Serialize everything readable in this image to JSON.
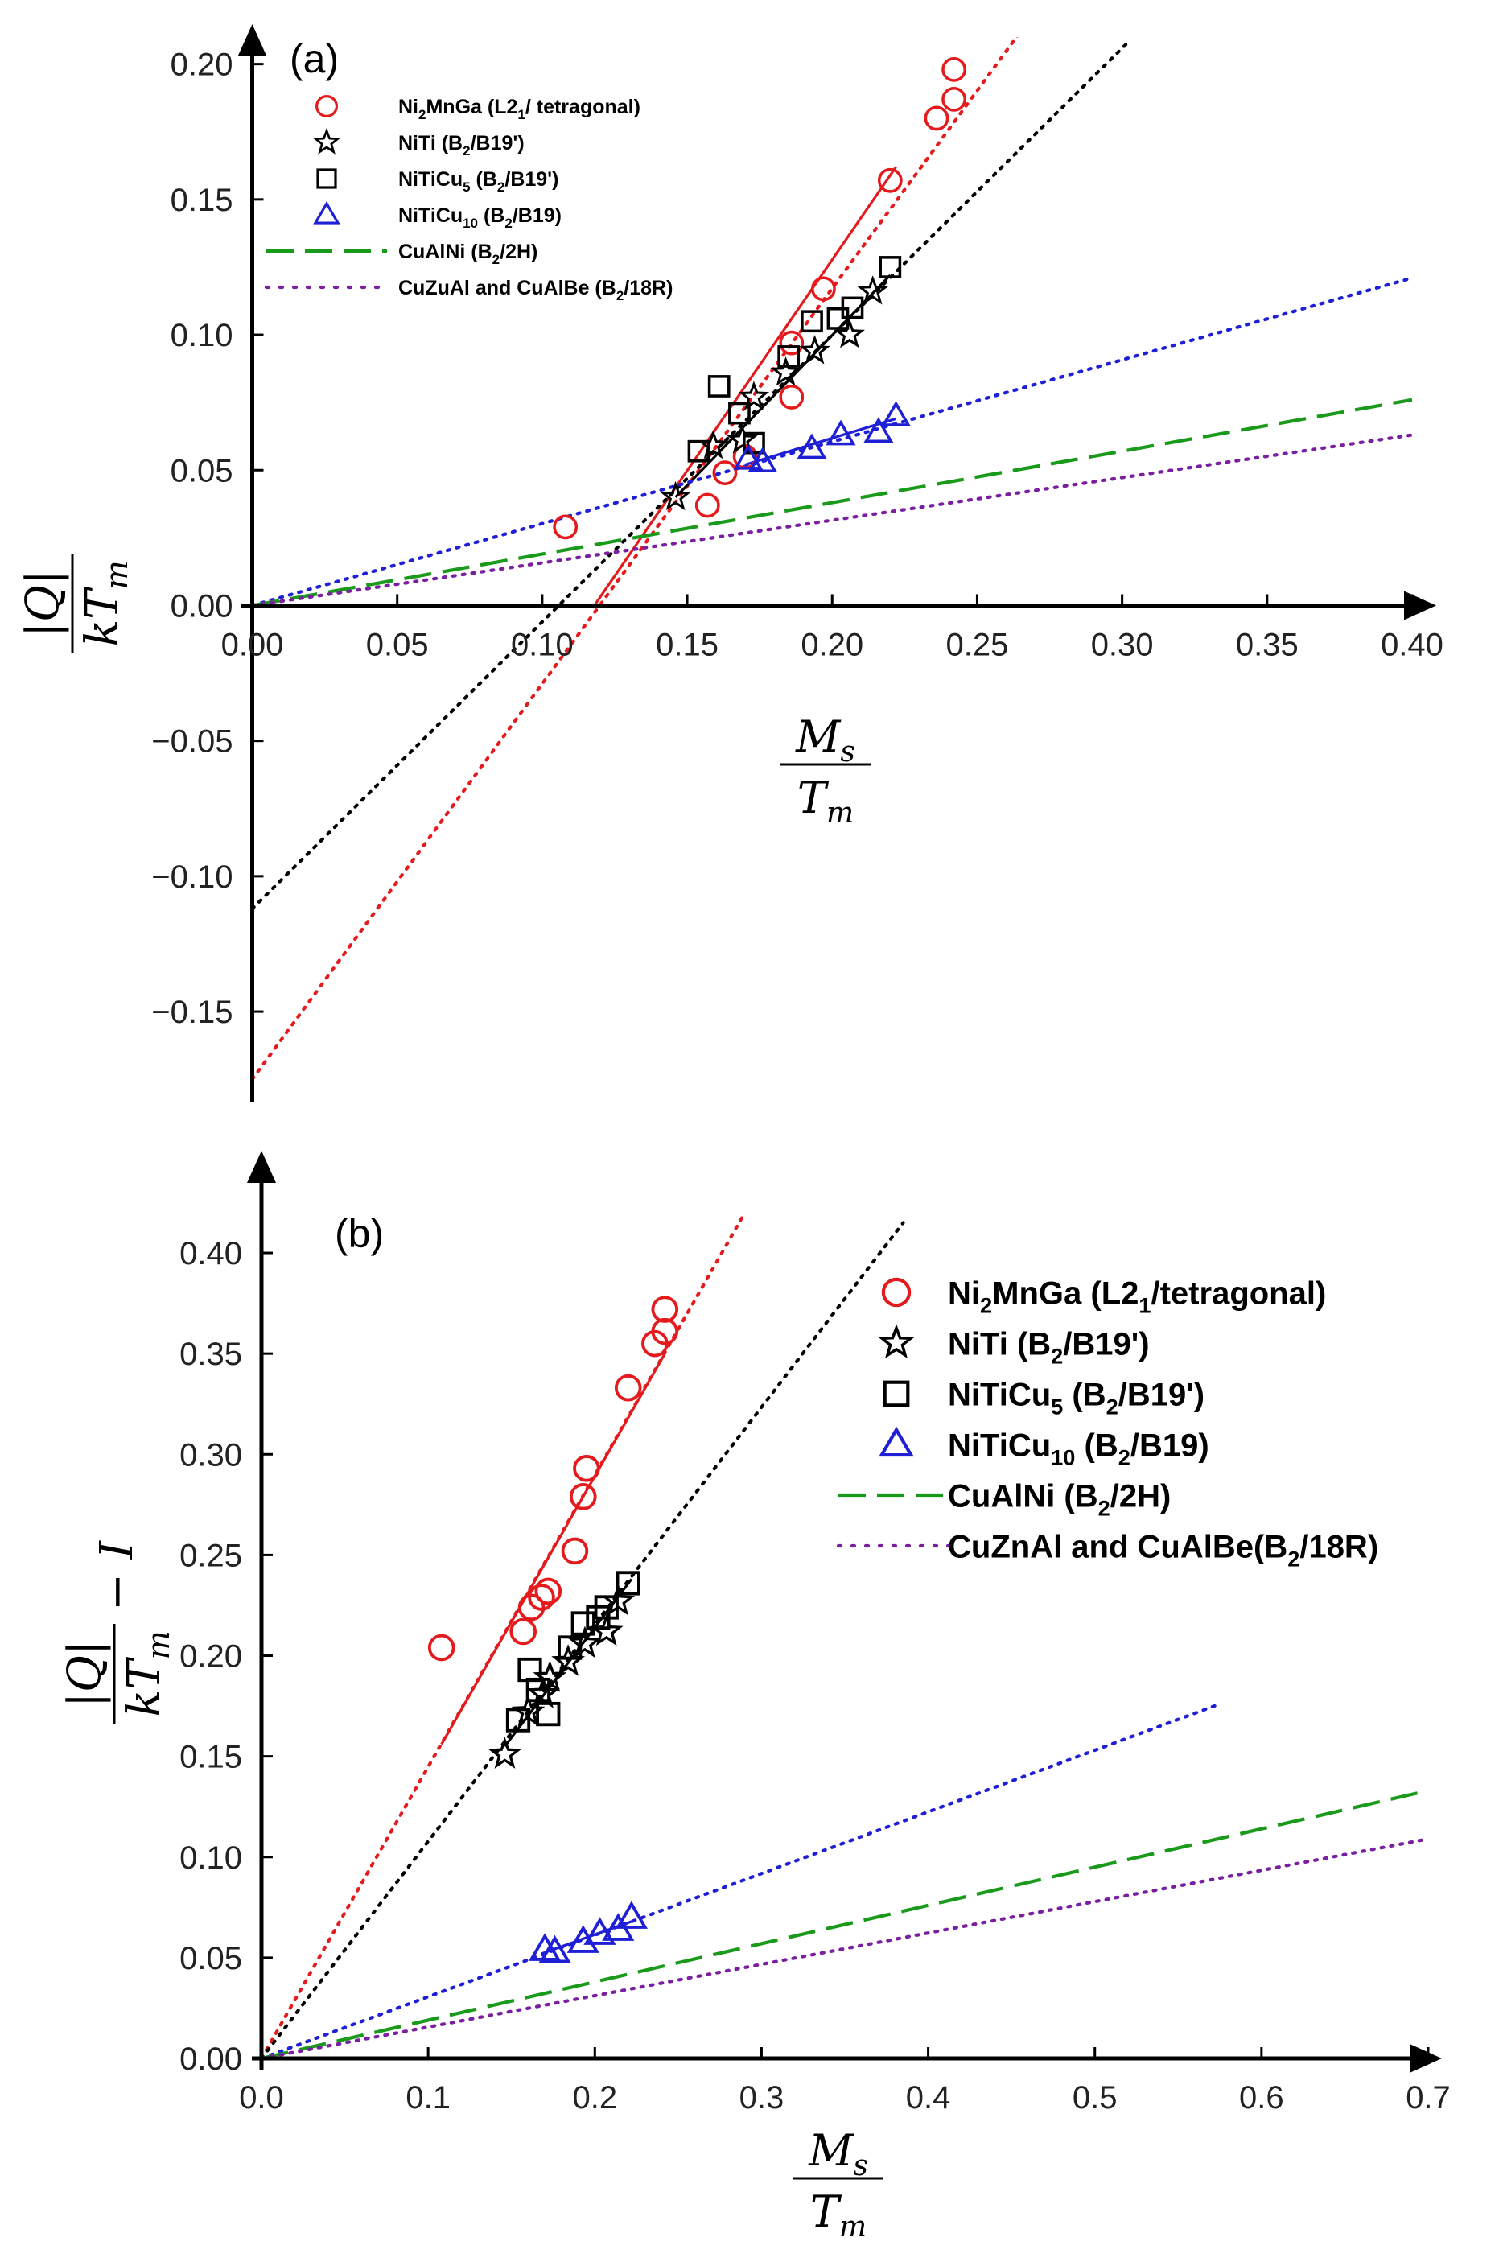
{
  "chart_data": [
    {
      "type": "scatter",
      "panel_label": "(a)",
      "xlabel_num": "M",
      "xlabel_num_sub": "s",
      "xlabel_den": "T",
      "xlabel_den_sub": "m",
      "ylabel_num": "|Q|",
      "ylabel_den": "kT",
      "ylabel_den_sub": "m",
      "ylabel_tail": "",
      "xlim": [
        0,
        0.4
      ],
      "ylim": [
        -0.18,
        0.21
      ],
      "xticks": [
        0.0,
        0.05,
        0.1,
        0.15,
        0.2,
        0.25,
        0.3,
        0.35,
        0.4
      ],
      "xtick_labels": [
        "0.00",
        "0.05",
        "0.10",
        "0.15",
        "0.20",
        "0.25",
        "0.30",
        "0.35",
        "0.40"
      ],
      "yticks": [
        -0.15,
        -0.1,
        -0.05,
        0.0,
        0.05,
        0.1,
        0.15,
        0.2
      ],
      "ytick_labels": [
        "−0.15",
        "−0.10",
        "−0.05",
        "0.00",
        "0.05",
        "0.10",
        "0.15",
        "0.20"
      ],
      "legend_position": "top-left",
      "legend_size": "small",
      "series": [
        {
          "name": "Ni2MnGa (L21/ tetragonal)",
          "marker": "circle",
          "color": "#e41a1c",
          "points": [
            [
              0.108,
              0.029
            ],
            [
              0.157,
              0.037
            ],
            [
              0.163,
              0.049
            ],
            [
              0.17,
              0.055
            ],
            [
              0.186,
              0.077
            ],
            [
              0.186,
              0.097
            ],
            [
              0.197,
              0.117
            ],
            [
              0.22,
              0.157
            ],
            [
              0.236,
              0.18
            ],
            [
              0.242,
              0.187
            ],
            [
              0.242,
              0.198
            ]
          ]
        },
        {
          "name": "NiTi (B2/B19')",
          "marker": "star",
          "color": "#000000",
          "points": [
            [
              0.146,
              0.04
            ],
            [
              0.159,
              0.059
            ],
            [
              0.169,
              0.061
            ],
            [
              0.173,
              0.077
            ],
            [
              0.184,
              0.086
            ],
            [
              0.194,
              0.094
            ],
            [
              0.206,
              0.1
            ],
            [
              0.214,
              0.116
            ]
          ]
        },
        {
          "name": "NiTiCu5 (B2/B19')",
          "marker": "square",
          "color": "#000000",
          "points": [
            [
              0.154,
              0.057
            ],
            [
              0.161,
              0.081
            ],
            [
              0.168,
              0.071
            ],
            [
              0.173,
              0.06
            ],
            [
              0.185,
              0.092
            ],
            [
              0.193,
              0.105
            ],
            [
              0.202,
              0.106
            ],
            [
              0.207,
              0.11
            ],
            [
              0.22,
              0.125
            ]
          ]
        },
        {
          "name": "NiTiCu10 (B2/B19)",
          "marker": "triangle",
          "color": "#1f1fd6",
          "points": [
            [
              0.171,
              0.054
            ],
            [
              0.176,
              0.053
            ],
            [
              0.193,
              0.058
            ],
            [
              0.203,
              0.063
            ],
            [
              0.216,
              0.064
            ],
            [
              0.222,
              0.07
            ]
          ]
        },
        {
          "name": "CuAlNi (B2/2H)",
          "marker": "none",
          "color": "#1a9a1a"
        },
        {
          "name": "CuZuAl and CuAlBe (B2/18R)",
          "marker": "none",
          "color": "#7a1fa0"
        }
      ],
      "lines": [
        {
          "color": "#e41a1c",
          "style": "dotted",
          "x": [
            0.0,
            0.267
          ],
          "y": [
            -0.175,
            0.215
          ]
        },
        {
          "color": "#e41a1c",
          "style": "solid",
          "x": [
            0.118,
            0.222
          ],
          "y": [
            0.0,
            0.162
          ]
        },
        {
          "color": "#000000",
          "style": "dotted",
          "x": [
            0.0,
            0.302
          ],
          "y": [
            -0.112,
            0.208
          ]
        },
        {
          "color": "#000000",
          "style": "solid",
          "x": [
            0.146,
            0.22
          ],
          "y": [
            0.04,
            0.122
          ]
        },
        {
          "color": "#1f1fd6",
          "style": "dotted",
          "x": [
            0.0,
            0.4
          ],
          "y": [
            0.0,
            0.121
          ]
        },
        {
          "color": "#1f1fd6",
          "style": "solid",
          "x": [
            0.17,
            0.222
          ],
          "y": [
            0.052,
            0.069
          ]
        },
        {
          "color": "#1a9a1a",
          "style": "dashed",
          "x": [
            0.0,
            0.4
          ],
          "y": [
            0.0,
            0.076
          ]
        },
        {
          "color": "#7a1fa0",
          "style": "dotted",
          "x": [
            0.0,
            0.4
          ],
          "y": [
            0.0,
            0.063
          ]
        }
      ]
    },
    {
      "type": "scatter",
      "panel_label": "(b)",
      "xlabel_num": "M",
      "xlabel_num_sub": "s",
      "xlabel_den": "T",
      "xlabel_den_sub": "m",
      "ylabel_num": "|Q|",
      "ylabel_den": "kT",
      "ylabel_den_sub": "m",
      "ylabel_tail": "− I",
      "xlim": [
        0,
        0.7
      ],
      "ylim": [
        0,
        0.42
      ],
      "xticks": [
        0.0,
        0.1,
        0.2,
        0.3,
        0.4,
        0.5,
        0.6,
        0.7
      ],
      "xtick_labels": [
        "0.0",
        "0.1",
        "0.2",
        "0.3",
        "0.4",
        "0.5",
        "0.6",
        "0.7"
      ],
      "yticks": [
        0.0,
        0.05,
        0.1,
        0.15,
        0.2,
        0.25,
        0.3,
        0.35,
        0.4
      ],
      "ytick_labels": [
        "0.00",
        "0.05",
        "0.10",
        "0.15",
        "0.20",
        "0.25",
        "0.30",
        "0.35",
        "0.40"
      ],
      "legend_position": "top-right",
      "legend_size": "large",
      "series": [
        {
          "name": "Ni2MnGa (L21/tetragonal)",
          "marker": "circle",
          "color": "#e41a1c",
          "points": [
            [
              0.108,
              0.204
            ],
            [
              0.157,
              0.212
            ],
            [
              0.162,
              0.224
            ],
            [
              0.168,
              0.229
            ],
            [
              0.172,
              0.232
            ],
            [
              0.188,
              0.252
            ],
            [
              0.193,
              0.279
            ],
            [
              0.195,
              0.293
            ],
            [
              0.22,
              0.333
            ],
            [
              0.236,
              0.355
            ],
            [
              0.242,
              0.361
            ],
            [
              0.242,
              0.372
            ]
          ]
        },
        {
          "name": "NiTi (B2/B19')",
          "marker": "star",
          "color": "#000000",
          "points": [
            [
              0.146,
              0.151
            ],
            [
              0.16,
              0.172
            ],
            [
              0.169,
              0.181
            ],
            [
              0.173,
              0.189
            ],
            [
              0.184,
              0.197
            ],
            [
              0.194,
              0.206
            ],
            [
              0.207,
              0.212
            ],
            [
              0.214,
              0.227
            ]
          ]
        },
        {
          "name": "NiTiCu5 (B2/B19')",
          "marker": "square",
          "color": "#000000",
          "points": [
            [
              0.154,
              0.168
            ],
            [
              0.161,
              0.193
            ],
            [
              0.166,
              0.183
            ],
            [
              0.172,
              0.171
            ],
            [
              0.185,
              0.204
            ],
            [
              0.193,
              0.216
            ],
            [
              0.202,
              0.219
            ],
            [
              0.207,
              0.224
            ],
            [
              0.22,
              0.236
            ]
          ]
        },
        {
          "name": "NiTiCu10 (B2/B19)",
          "marker": "triangle",
          "color": "#1f1fd6",
          "points": [
            [
              0.17,
              0.054
            ],
            [
              0.176,
              0.053
            ],
            [
              0.193,
              0.058
            ],
            [
              0.203,
              0.062
            ],
            [
              0.214,
              0.064
            ],
            [
              0.222,
              0.07
            ]
          ]
        },
        {
          "name": "CuAlNi (B2/2H)",
          "marker": "none",
          "color": "#1a9a1a"
        },
        {
          "name": "CuZnAl and CuAlBe(B2/18R)",
          "marker": "none",
          "color": "#7a1fa0"
        }
      ],
      "lines": [
        {
          "color": "#e41a1c",
          "style": "dotted",
          "x": [
            0.0,
            0.29
          ],
          "y": [
            0.0,
            0.42
          ]
        },
        {
          "color": "#e41a1c",
          "style": "solid",
          "x": [
            0.108,
            0.242
          ],
          "y": [
            0.156,
            0.35
          ]
        },
        {
          "color": "#000000",
          "style": "dotted",
          "x": [
            0.0,
            0.385
          ],
          "y": [
            0.0,
            0.415
          ]
        },
        {
          "color": "#000000",
          "style": "solid",
          "x": [
            0.146,
            0.222
          ],
          "y": [
            0.155,
            0.238
          ]
        },
        {
          "color": "#1f1fd6",
          "style": "dotted",
          "x": [
            0.0,
            0.575
          ],
          "y": [
            0.0,
            0.176
          ]
        },
        {
          "color": "#1f1fd6",
          "style": "solid",
          "x": [
            0.168,
            0.222
          ],
          "y": [
            0.052,
            0.068
          ]
        },
        {
          "color": "#1a9a1a",
          "style": "dashed",
          "x": [
            0.0,
            0.7
          ],
          "y": [
            0.0,
            0.133
          ]
        },
        {
          "color": "#7a1fa0",
          "style": "dotted",
          "x": [
            0.0,
            0.7
          ],
          "y": [
            0.0,
            0.109
          ]
        }
      ]
    }
  ]
}
